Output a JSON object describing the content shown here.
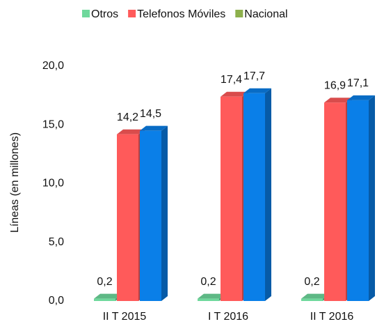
{
  "chart_data": {
    "type": "bar3d",
    "categories": [
      "II T 2015",
      "I T 2016",
      "II T 2016"
    ],
    "y_label": "Líneas (en millones)",
    "ylim": [
      0,
      20
    ],
    "yticks": [
      {
        "value": 0,
        "label": "0,0"
      },
      {
        "value": 5,
        "label": "5,0"
      },
      {
        "value": 10,
        "label": "10,0"
      },
      {
        "value": 15,
        "label": "15,0"
      },
      {
        "value": 20,
        "label": "20,0"
      }
    ],
    "grid": false,
    "legend": "top",
    "series": [
      {
        "name": "Otros",
        "color": "#6fd89c",
        "legend_color": "#6fd89c",
        "values": [
          0.2,
          0.2,
          0.2
        ],
        "value_labels": [
          "0,2",
          "0,2",
          "0,2"
        ]
      },
      {
        "name": "Telefonos Móviles",
        "color": "#ff5a5a",
        "legend_color": "#ff5a5a",
        "values": [
          14.2,
          17.4,
          16.9
        ],
        "value_labels": [
          "14,2",
          "17,4",
          "16,9"
        ]
      },
      {
        "name": "Nacional",
        "color": "#0a7fe8",
        "legend_color": "#8db04c",
        "values": [
          14.5,
          17.7,
          17.1
        ],
        "value_labels": [
          "14,5",
          "17,7",
          "17,1"
        ]
      }
    ]
  }
}
